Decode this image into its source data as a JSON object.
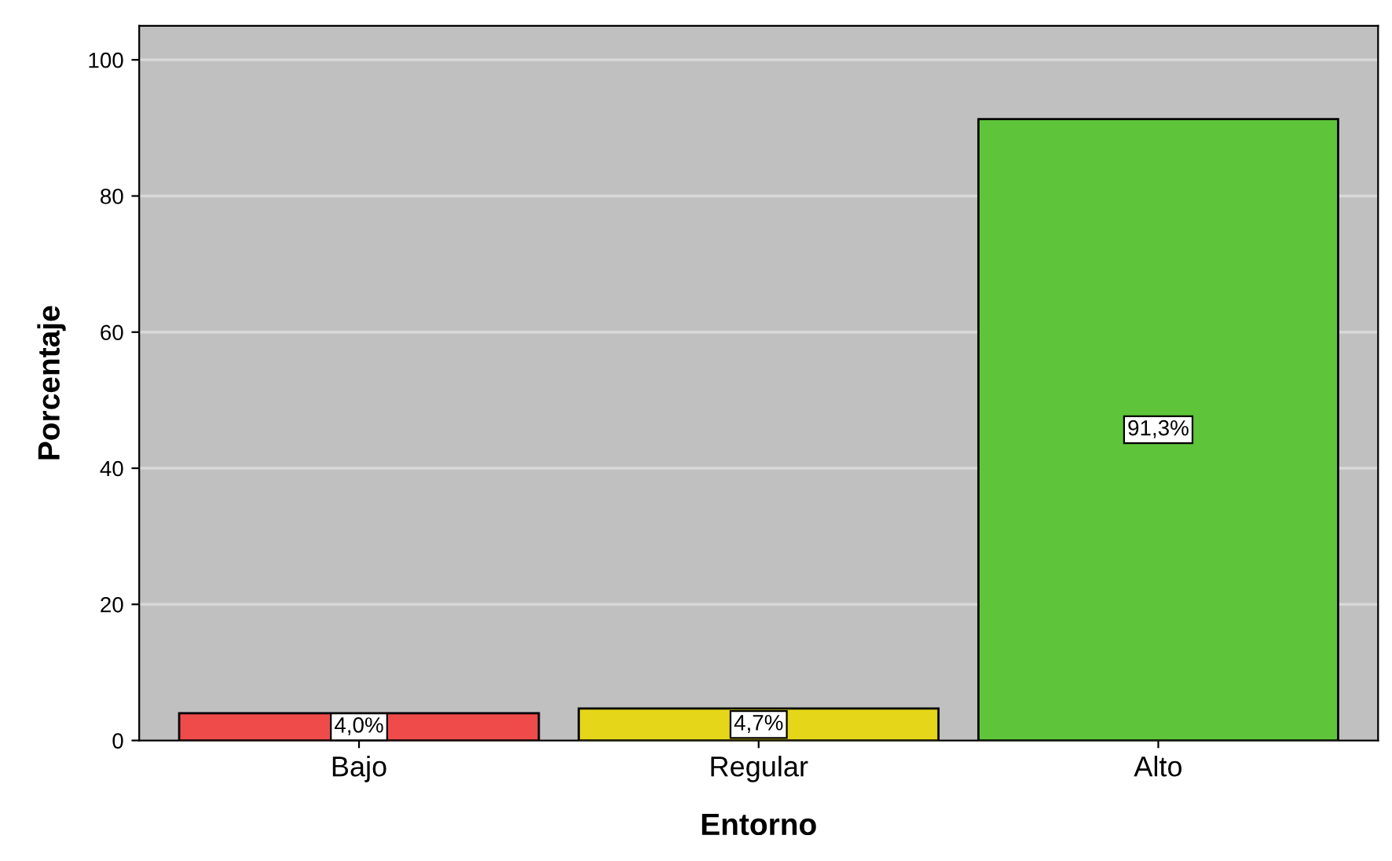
{
  "chart_data": {
    "type": "bar",
    "xlabel": "Entorno",
    "ylabel": "Porcentaje",
    "categories": [
      "Bajo",
      "Regular",
      "Alto"
    ],
    "values": [
      4.0,
      4.7,
      91.3
    ],
    "colors": [
      "#ef4b4b",
      "#e5d619",
      "#5ec53a"
    ],
    "value_labels": [
      "4,0%",
      "4,7%",
      "91,3%"
    ],
    "ylim": [
      0,
      105
    ],
    "yticks": [
      0,
      20,
      40,
      60,
      80,
      100
    ],
    "grid": "y",
    "legend": false
  }
}
